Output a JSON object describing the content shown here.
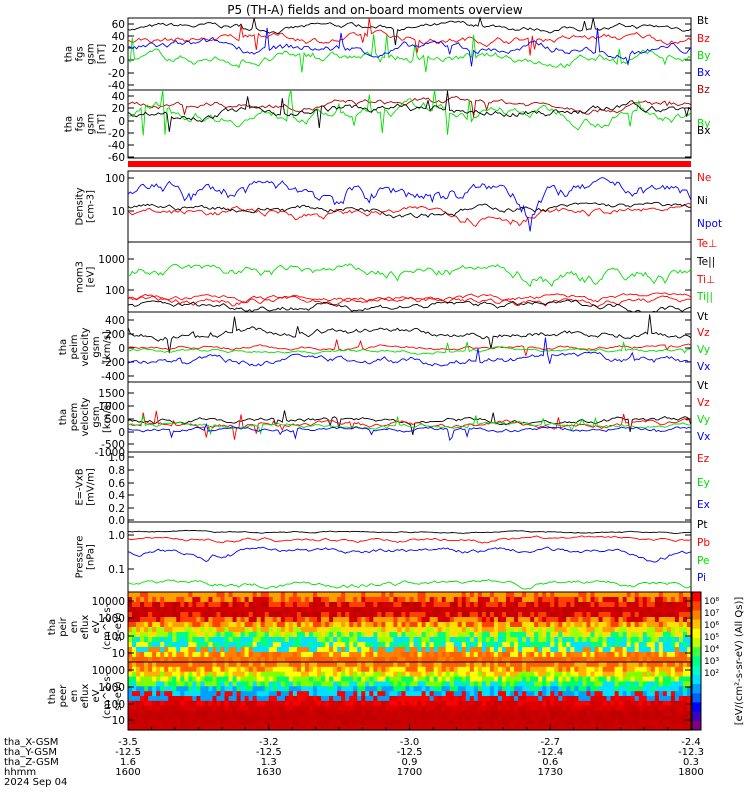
{
  "title": "P5 (TH-A) fields and on-board moments overview",
  "colors": {
    "black": "#000000",
    "red": "#ff0000",
    "darkred": "#b00000",
    "blue": "#0000ff",
    "green": "#00e000"
  },
  "chart_data": [
    {
      "type": "line",
      "ylabel": [
        "tha",
        "fgs",
        "gsm",
        "[nT]"
      ],
      "ylim": [
        -40,
        70
      ],
      "ticks": [
        "60",
        "40",
        "20",
        "0",
        "-20",
        "-40"
      ],
      "series": [
        {
          "name": "Bt",
          "color": "#000000"
        },
        {
          "name": "Bz",
          "color": "#ff0000"
        },
        {
          "name": "By",
          "color": "#00e000"
        },
        {
          "name": "Bx",
          "color": "#0000ff"
        }
      ]
    },
    {
      "type": "line",
      "ylabel": [
        "tha",
        "fgs",
        "gsm",
        "[nT]"
      ],
      "ylim": [
        -70,
        50
      ],
      "ticks": [
        "40",
        "20",
        "0",
        "-20",
        "-40",
        "-60"
      ],
      "series": [
        {
          "name": "Bz",
          "color": "#b00000"
        },
        {
          "name": "By",
          "color": "#00e000"
        },
        {
          "name": "Bx",
          "color": "#000000"
        }
      ]
    },
    {
      "type": "line",
      "ylabel": [
        "Density",
        "[cm-3]"
      ],
      "scale": "log",
      "ticks": [
        "100",
        "10"
      ],
      "series": [
        {
          "name": "Ne",
          "color": "#ff0000"
        },
        {
          "name": "Ni",
          "color": "#000000"
        },
        {
          "name": "Npot",
          "color": "#0000ff"
        }
      ]
    },
    {
      "type": "line",
      "ylabel": [
        "mom3",
        "[eV]"
      ],
      "scale": "log",
      "ticks": [
        "1000",
        "100"
      ],
      "series": [
        {
          "name": "Te⊥",
          "color": "#ff0000"
        },
        {
          "name": "Te||",
          "color": "#000000"
        },
        {
          "name": "Ti⊥",
          "color": "#ff0000"
        },
        {
          "name": "Ti||",
          "color": "#00e000"
        }
      ]
    },
    {
      "type": "line",
      "ylabel": [
        "tha",
        "peim",
        "velocity",
        "gsm",
        "[km/s]"
      ],
      "ylim": [
        -400,
        450
      ],
      "ticks": [
        "400",
        "200",
        "0",
        "-200",
        "-400"
      ],
      "series": [
        {
          "name": "Vt",
          "color": "#000000"
        },
        {
          "name": "Vz",
          "color": "#ff0000"
        },
        {
          "name": "Vy",
          "color": "#00e000"
        },
        {
          "name": "Vx",
          "color": "#0000ff"
        }
      ]
    },
    {
      "type": "line",
      "ylabel": [
        "tha",
        "peem",
        "velocity",
        "gsm",
        "[km/s]"
      ],
      "ylim": [
        -1000,
        1500
      ],
      "ticks": [
        "1500",
        "1000",
        "500",
        "0",
        "-500",
        "-1000"
      ],
      "series": [
        {
          "name": "Vt",
          "color": "#000000"
        },
        {
          "name": "Vz",
          "color": "#ff0000"
        },
        {
          "name": "Vy",
          "color": "#00e000"
        },
        {
          "name": "Vx",
          "color": "#0000ff"
        }
      ]
    },
    {
      "type": "line",
      "ylabel": [
        "E=-VxB",
        "[mV/m]"
      ],
      "ylim": [
        0,
        1
      ],
      "ticks": [
        "1.0",
        "0.8",
        "0.6",
        "0.4",
        "0.2",
        "0.0"
      ],
      "series": [
        {
          "name": "Ez",
          "color": "#ff0000"
        },
        {
          "name": "Ey",
          "color": "#00e000"
        },
        {
          "name": "Ex",
          "color": "#0000ff"
        }
      ]
    },
    {
      "type": "line",
      "ylabel": [
        "Pressure",
        "[nPa]"
      ],
      "scale": "log",
      "ticks": [
        "1.0",
        "0.1"
      ],
      "series": [
        {
          "name": "Pt",
          "color": "#000000"
        },
        {
          "name": "Pb",
          "color": "#ff0000"
        },
        {
          "name": "Pe",
          "color": "#00e000"
        },
        {
          "name": "Pi",
          "color": "#0000ff"
        }
      ]
    },
    {
      "type": "heatmap",
      "ylabel": [
        "tha",
        "peir",
        "en",
        "eflux",
        "eV",
        "(cm^2-s-",
        "sr-eV)"
      ],
      "scale": "log",
      "ticks": [
        "10000",
        "1000",
        "100",
        "10"
      ]
    },
    {
      "type": "heatmap",
      "ylabel": [
        "tha",
        "peer",
        "en",
        "eflux",
        "eV",
        "(cm^2-s-",
        "sr-eV)"
      ],
      "scale": "log",
      "ticks": [
        "10000",
        "1000",
        "100",
        "10"
      ]
    }
  ],
  "colorbar": {
    "ticks": [
      "10⁸",
      "10⁷",
      "10⁶",
      "10⁵",
      "10⁴",
      "10³",
      "10²"
    ],
    "label": "[eV/(cm²-s-sr-eV) (All Qs)]"
  },
  "xaxis": {
    "rows": [
      {
        "label": "tha_X-GSM",
        "values": [
          "-3.5",
          "-3.2",
          "-3.0",
          "-2.7",
          "-2.4"
        ]
      },
      {
        "label": "tha_Y-GSM",
        "values": [
          "-12.5",
          "-12.5",
          "-12.5",
          "-12.4",
          "-12.3"
        ]
      },
      {
        "label": "tha_Z-GSM",
        "values": [
          "1.6",
          "1.3",
          "0.9",
          "0.6",
          "0.3"
        ]
      },
      {
        "label": "hhmm",
        "values": [
          "1600",
          "1630",
          "1700",
          "1730",
          "1800"
        ]
      }
    ],
    "date": "2024 Sep 04"
  }
}
